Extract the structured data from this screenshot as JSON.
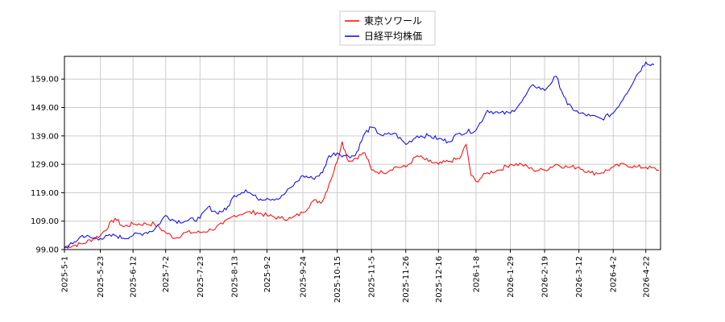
{
  "chart_data": {
    "type": "line",
    "legend_position": "top-center",
    "grid": true,
    "x_ticks": [
      "2025-5-1",
      "2025-5-23",
      "2025-6-12",
      "2025-7-2",
      "2025-7-23",
      "2025-8-13",
      "2025-9-2",
      "2025-9-24",
      "2025-10-15",
      "2025-11-5",
      "2025-11-26",
      "2025-12-16",
      "2026-1-8",
      "2026-1-29",
      "2026-2-19",
      "2026-3-12",
      "2026-4-2",
      "2026-4-22"
    ],
    "y_ticks": [
      "99.00",
      "109.00",
      "119.00",
      "129.00",
      "139.00",
      "149.00",
      "159.00"
    ],
    "ylim": [
      99,
      167
    ],
    "series": [
      {
        "name": "東京ソワール",
        "color": "#ff0000",
        "points": [
          [
            "2025-5-1",
            100
          ],
          [
            "2025-5-12",
            101
          ],
          [
            "2025-5-23",
            104
          ],
          [
            "2025-6-1",
            110
          ],
          [
            "2025-6-6",
            107
          ],
          [
            "2025-6-12",
            108
          ],
          [
            "2025-6-20",
            108
          ],
          [
            "2025-6-25",
            108
          ],
          [
            "2025-7-2",
            105
          ],
          [
            "2025-7-8",
            103
          ],
          [
            "2025-7-14",
            105
          ],
          [
            "2025-7-23",
            105
          ],
          [
            "2025-7-30",
            106
          ],
          [
            "2025-8-6",
            108
          ],
          [
            "2025-8-13",
            111
          ],
          [
            "2025-8-20",
            112
          ],
          [
            "2025-8-27",
            112
          ],
          [
            "2025-9-2",
            111
          ],
          [
            "2025-9-10",
            110
          ],
          [
            "2025-9-17",
            110
          ],
          [
            "2025-9-24",
            112
          ],
          [
            "2025-9-30",
            116
          ],
          [
            "2025-10-6",
            116
          ],
          [
            "2025-10-10",
            122
          ],
          [
            "2025-10-15",
            130
          ],
          [
            "2025-10-18",
            137
          ],
          [
            "2025-10-22",
            130
          ],
          [
            "2025-11-1",
            133
          ],
          [
            "2025-11-5",
            127
          ],
          [
            "2025-11-12",
            126
          ],
          [
            "2025-11-19",
            128
          ],
          [
            "2025-11-26",
            128
          ],
          [
            "2025-12-3",
            132
          ],
          [
            "2025-12-10",
            130
          ],
          [
            "2025-12-16",
            129
          ],
          [
            "2025-12-22",
            130
          ],
          [
            "2025-12-29",
            131
          ],
          [
            "2026-1-2",
            136
          ],
          [
            "2026-1-5",
            125
          ],
          [
            "2026-1-8",
            123
          ],
          [
            "2026-1-15",
            126
          ],
          [
            "2026-1-22",
            127
          ],
          [
            "2026-1-29",
            129
          ],
          [
            "2026-2-5",
            129
          ],
          [
            "2026-2-12",
            127
          ],
          [
            "2026-2-19",
            127
          ],
          [
            "2026-2-26",
            129
          ],
          [
            "2026-3-5",
            128
          ],
          [
            "2026-3-12",
            128
          ],
          [
            "2026-3-19",
            126
          ],
          [
            "2026-3-26",
            126
          ],
          [
            "2026-4-2",
            128
          ],
          [
            "2026-4-9",
            129
          ],
          [
            "2026-4-16",
            128
          ],
          [
            "2026-4-22",
            128
          ],
          [
            "2026-4-30",
            127
          ]
        ]
      },
      {
        "name": "日経平均株価",
        "color": "#0000ff",
        "points": [
          [
            "2025-5-1",
            99.5
          ],
          [
            "2025-5-6",
            101
          ],
          [
            "2025-5-12",
            104
          ],
          [
            "2025-5-18",
            103
          ],
          [
            "2025-5-23",
            103
          ],
          [
            "2025-6-1",
            104
          ],
          [
            "2025-6-6",
            103
          ],
          [
            "2025-6-12",
            104
          ],
          [
            "2025-6-20",
            105
          ],
          [
            "2025-6-25",
            106
          ],
          [
            "2025-7-2",
            111
          ],
          [
            "2025-7-8",
            109
          ],
          [
            "2025-7-14",
            109
          ],
          [
            "2025-7-23",
            110
          ],
          [
            "2025-7-28",
            114
          ],
          [
            "2025-8-2",
            112
          ],
          [
            "2025-8-8",
            113
          ],
          [
            "2025-8-13",
            118
          ],
          [
            "2025-8-20",
            120
          ],
          [
            "2025-8-27",
            117
          ],
          [
            "2025-9-2",
            117
          ],
          [
            "2025-9-10",
            117
          ],
          [
            "2025-9-17",
            121
          ],
          [
            "2025-9-24",
            125
          ],
          [
            "2025-9-30",
            124
          ],
          [
            "2025-10-6",
            126
          ],
          [
            "2025-10-10",
            132
          ],
          [
            "2025-10-15",
            133
          ],
          [
            "2025-10-20",
            132
          ],
          [
            "2025-10-26",
            132
          ],
          [
            "2025-11-1",
            140
          ],
          [
            "2025-11-5",
            142
          ],
          [
            "2025-11-12",
            139
          ],
          [
            "2025-11-19",
            140
          ],
          [
            "2025-11-26",
            136
          ],
          [
            "2025-12-3",
            139
          ],
          [
            "2025-12-10",
            139
          ],
          [
            "2025-12-16",
            138
          ],
          [
            "2025-12-22",
            137
          ],
          [
            "2025-12-29",
            140
          ],
          [
            "2026-1-8",
            141
          ],
          [
            "2026-1-15",
            148
          ],
          [
            "2026-1-22",
            147
          ],
          [
            "2026-1-29",
            147
          ],
          [
            "2026-2-5",
            151
          ],
          [
            "2026-2-12",
            157
          ],
          [
            "2026-2-19",
            155
          ],
          [
            "2026-2-26",
            160
          ],
          [
            "2026-3-5",
            150
          ],
          [
            "2026-3-12",
            147
          ],
          [
            "2026-3-19",
            146
          ],
          [
            "2026-3-26",
            145
          ],
          [
            "2026-4-2",
            147
          ],
          [
            "2026-4-9",
            153
          ],
          [
            "2026-4-16",
            160
          ],
          [
            "2026-4-22",
            165
          ],
          [
            "2026-4-27",
            164
          ]
        ]
      }
    ]
  }
}
